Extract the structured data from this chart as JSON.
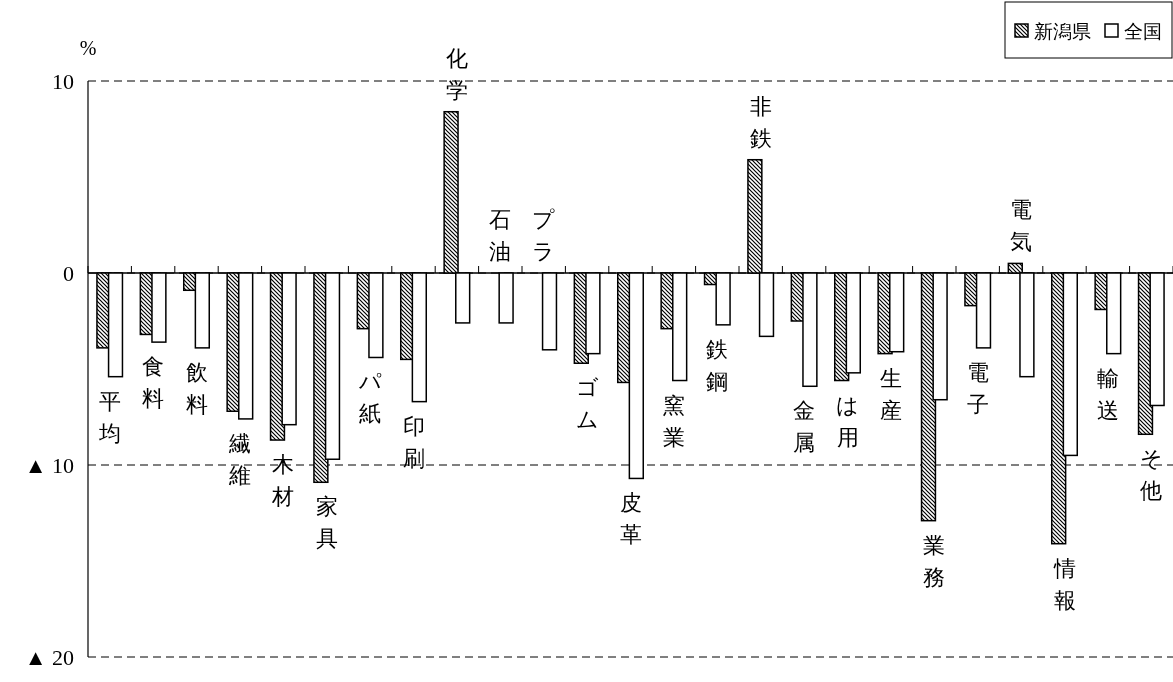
{
  "chart_data": {
    "type": "bar",
    "ylabel": "%",
    "categories": [
      "平均",
      "食料",
      "飲料",
      "繊維",
      "木材",
      "家具",
      "パ紙",
      "印刷",
      "化学",
      "石油",
      "プラ",
      "ゴム",
      "皮革",
      "窯業",
      "鉄鋼",
      "非鉄",
      "金属",
      "は用",
      "生産",
      "業務",
      "電子",
      "電気",
      "情報",
      "輸送",
      "そ他"
    ],
    "series": [
      {
        "name": "新潟県",
        "color": "#000000",
        "values": [
          -3.9,
          -3.2,
          -0.9,
          -7.2,
          -8.7,
          -10.9,
          -2.9,
          -4.5,
          8.4,
          null,
          null,
          -4.7,
          -5.7,
          -2.9,
          -0.6,
          5.9,
          -2.5,
          -5.6,
          -4.2,
          -12.9,
          -1.7,
          0.5,
          -14.1,
          -1.9,
          -8.4
        ]
      },
      {
        "name": "全国",
        "color": "#ffffff",
        "values": [
          -5.4,
          -3.6,
          -3.9,
          -7.6,
          -7.9,
          -9.7,
          -4.4,
          -6.7,
          -2.6,
          -2.6,
          -4.0,
          -4.2,
          -10.7,
          -5.6,
          -2.7,
          -3.3,
          -5.9,
          -5.2,
          -4.1,
          -6.6,
          -3.9,
          -5.4,
          -9.5,
          -4.2,
          -6.9
        ]
      }
    ],
    "ylim": [
      -20,
      10
    ],
    "yticks": [
      {
        "value": 10,
        "label": "10"
      },
      0,
      {
        "value": -10,
        "label": "▲ 10"
      },
      {
        "value": -20,
        "label": "▲ 20"
      }
    ],
    "grid": "y",
    "legend": "top right"
  }
}
